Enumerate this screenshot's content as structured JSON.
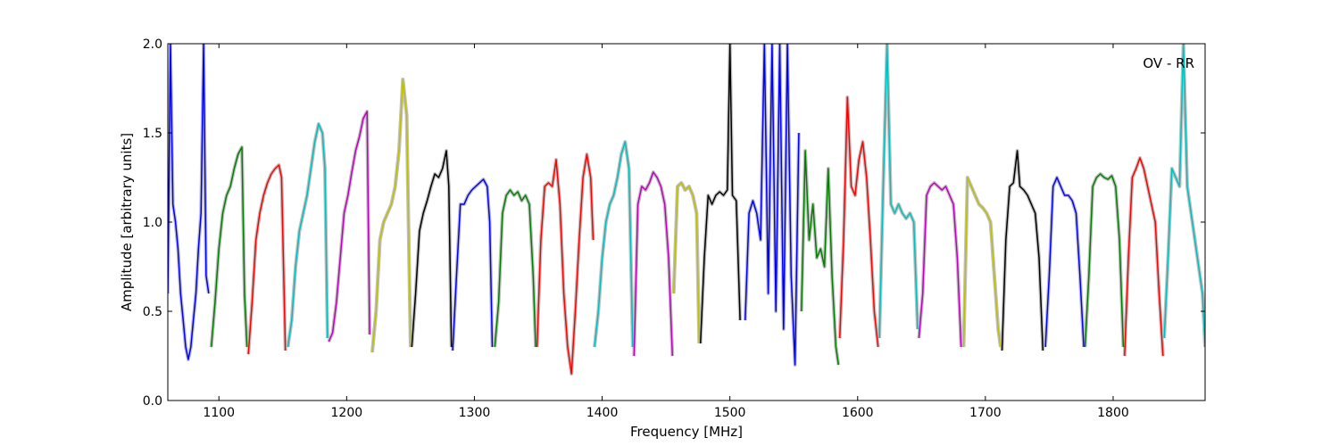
{
  "chart_data": {
    "type": "line",
    "title": "",
    "annotation": "OV - RR",
    "xlabel": "Frequency [MHz]",
    "ylabel": "Amplitude [arbitrary units]",
    "xlim": [
      1060,
      1872
    ],
    "ylim": [
      0.0,
      2.0
    ],
    "xticks": [
      1100,
      1200,
      1300,
      1400,
      1500,
      1600,
      1700,
      1800
    ],
    "xtick_labels": [
      "1100",
      "1200",
      "1300",
      "1400",
      "1500",
      "1600",
      "1700",
      "1800"
    ],
    "yticks": [
      0.0,
      0.5,
      1.0,
      1.5,
      2.0
    ],
    "ytick_labels": [
      "0.0",
      "0.5",
      "1.0",
      "1.5",
      "2.0"
    ],
    "grid": false,
    "legend": "none",
    "background_series_color": "#c0c0c0",
    "series": [
      {
        "color": "#0000ff",
        "x": [
          1060,
          1062,
          1064,
          1066,
          1068,
          1070,
          1072,
          1074,
          1076,
          1078,
          1080,
          1082,
          1084,
          1086,
          1088,
          1090,
          1092
        ],
        "y": [
          0.6,
          2.0,
          1.1,
          1.0,
          0.85,
          0.6,
          0.45,
          0.3,
          0.23,
          0.3,
          0.45,
          0.6,
          0.85,
          1.05,
          2.0,
          0.7,
          0.6
        ]
      },
      {
        "color": "#008000",
        "x": [
          1094,
          1097,
          1100,
          1103,
          1106,
          1109,
          1112,
          1115,
          1118,
          1120,
          1122
        ],
        "y": [
          0.3,
          0.55,
          0.85,
          1.05,
          1.15,
          1.2,
          1.3,
          1.38,
          1.42,
          0.6,
          0.3
        ]
      },
      {
        "color": "#ff0000",
        "x": [
          1123,
          1126,
          1129,
          1132,
          1135,
          1138,
          1141,
          1144,
          1147,
          1149,
          1152
        ],
        "y": [
          0.26,
          0.55,
          0.9,
          1.05,
          1.15,
          1.22,
          1.27,
          1.3,
          1.32,
          1.25,
          0.28
        ]
      },
      {
        "color": "#00bfbf",
        "x": [
          1154,
          1157,
          1160,
          1163,
          1166,
          1169,
          1172,
          1175,
          1178,
          1181,
          1183,
          1185
        ],
        "y": [
          0.3,
          0.45,
          0.75,
          0.95,
          1.05,
          1.15,
          1.3,
          1.45,
          1.55,
          1.5,
          1.3,
          0.35
        ]
      },
      {
        "color": "#bf00bf",
        "x": [
          1186,
          1189,
          1192,
          1195,
          1198,
          1201,
          1204,
          1207,
          1210,
          1213,
          1216,
          1218
        ],
        "y": [
          0.33,
          0.38,
          0.55,
          0.8,
          1.05,
          1.15,
          1.28,
          1.4,
          1.48,
          1.58,
          1.62,
          0.37
        ]
      },
      {
        "color": "#bfbf00",
        "x": [
          1220,
          1223,
          1226,
          1229,
          1232,
          1235,
          1238,
          1241,
          1244,
          1247,
          1250
        ],
        "y": [
          0.27,
          0.5,
          0.9,
          1.0,
          1.05,
          1.1,
          1.2,
          1.4,
          1.8,
          1.6,
          0.3
        ]
      },
      {
        "color": "#000000",
        "x": [
          1251,
          1254,
          1257,
          1260,
          1263,
          1266,
          1269,
          1272,
          1275,
          1278,
          1280,
          1282
        ],
        "y": [
          0.3,
          0.6,
          0.95,
          1.05,
          1.12,
          1.2,
          1.27,
          1.25,
          1.3,
          1.4,
          1.2,
          0.3
        ]
      },
      {
        "color": "#0000ff",
        "x": [
          1283,
          1286,
          1289,
          1292,
          1295,
          1298,
          1301,
          1304,
          1307,
          1310,
          1312,
          1314
        ],
        "y": [
          0.28,
          0.7,
          1.1,
          1.1,
          1.15,
          1.18,
          1.2,
          1.22,
          1.24,
          1.2,
          1.0,
          0.3
        ]
      },
      {
        "color": "#008000",
        "x": [
          1316,
          1319,
          1322,
          1325,
          1328,
          1331,
          1334,
          1337,
          1340,
          1343,
          1346,
          1348
        ],
        "y": [
          0.3,
          0.55,
          1.05,
          1.15,
          1.18,
          1.15,
          1.17,
          1.12,
          1.15,
          1.1,
          0.7,
          0.3
        ]
      },
      {
        "color": "#ff0000",
        "x": [
          1349,
          1352,
          1355,
          1358,
          1361,
          1364,
          1367,
          1370,
          1373,
          1376,
          1379,
          1382,
          1385,
          1388,
          1391,
          1393
        ],
        "y": [
          0.3,
          0.9,
          1.2,
          1.22,
          1.2,
          1.35,
          1.1,
          0.6,
          0.3,
          0.15,
          0.5,
          0.9,
          1.25,
          1.38,
          1.25,
          0.9
        ]
      },
      {
        "color": "#00bfbf",
        "x": [
          1394,
          1397,
          1400,
          1403,
          1406,
          1409,
          1412,
          1415,
          1418,
          1421,
          1424
        ],
        "y": [
          0.3,
          0.5,
          0.8,
          1.0,
          1.1,
          1.15,
          1.25,
          1.38,
          1.45,
          1.3,
          0.3
        ]
      },
      {
        "color": "#bf00bf",
        "x": [
          1425,
          1428,
          1431,
          1434,
          1437,
          1440,
          1443,
          1446,
          1449,
          1452,
          1455
        ],
        "y": [
          0.25,
          1.1,
          1.2,
          1.18,
          1.22,
          1.28,
          1.25,
          1.2,
          1.1,
          0.8,
          0.25
        ]
      },
      {
        "color": "#bfbf00",
        "x": [
          1456,
          1459,
          1462,
          1465,
          1468,
          1471,
          1474,
          1476
        ],
        "y": [
          0.6,
          1.2,
          1.22,
          1.18,
          1.2,
          1.15,
          1.05,
          0.32
        ]
      },
      {
        "color": "#000000",
        "x": [
          1477,
          1480,
          1483,
          1486,
          1489,
          1492,
          1495,
          1498,
          1500,
          1502,
          1505,
          1508
        ],
        "y": [
          0.32,
          0.8,
          1.15,
          1.1,
          1.15,
          1.17,
          1.15,
          1.18,
          2.0,
          1.15,
          1.12,
          0.45
        ]
      },
      {
        "color": "#0000ff",
        "x": [
          1512,
          1515,
          1518,
          1521,
          1524,
          1527,
          1530,
          1533,
          1536,
          1539,
          1542,
          1545,
          1548,
          1551,
          1554
        ],
        "y": [
          0.45,
          1.05,
          1.12,
          1.05,
          0.9,
          2.0,
          0.6,
          2.0,
          0.5,
          2.0,
          0.4,
          2.0,
          0.7,
          0.2,
          1.5
        ]
      },
      {
        "color": "#008000",
        "x": [
          1556,
          1559,
          1562,
          1565,
          1568,
          1571,
          1574,
          1577,
          1580,
          1583,
          1585
        ],
        "y": [
          0.5,
          1.4,
          0.9,
          1.1,
          0.8,
          0.85,
          0.75,
          1.3,
          0.7,
          0.3,
          0.2
        ]
      },
      {
        "color": "#ff0000",
        "x": [
          1586,
          1589,
          1592,
          1595,
          1598,
          1601,
          1604,
          1607,
          1610,
          1613,
          1616
        ],
        "y": [
          0.35,
          0.9,
          1.7,
          1.2,
          1.15,
          1.35,
          1.45,
          1.25,
          0.9,
          0.5,
          0.3
        ]
      },
      {
        "color": "#00bfbf",
        "x": [
          1617,
          1620,
          1623,
          1626,
          1629,
          1632,
          1635,
          1638,
          1641,
          1644,
          1647
        ],
        "y": [
          0.35,
          1.2,
          2.0,
          1.1,
          1.05,
          1.1,
          1.05,
          1.02,
          1.05,
          1.0,
          0.4
        ]
      },
      {
        "color": "#bf00bf",
        "x": [
          1648,
          1651,
          1654,
          1657,
          1660,
          1663,
          1666,
          1669,
          1672,
          1675,
          1678,
          1681
        ],
        "y": [
          0.35,
          0.6,
          1.15,
          1.2,
          1.22,
          1.2,
          1.18,
          1.2,
          1.15,
          1.1,
          0.8,
          0.3
        ]
      },
      {
        "color": "#bfbf00",
        "x": [
          1683,
          1686,
          1689,
          1692,
          1695,
          1698,
          1701,
          1704,
          1707,
          1710,
          1712
        ],
        "y": [
          0.3,
          1.25,
          1.2,
          1.15,
          1.1,
          1.08,
          1.05,
          1.0,
          0.7,
          0.4,
          0.3
        ]
      },
      {
        "color": "#000000",
        "x": [
          1713,
          1716,
          1719,
          1722,
          1725,
          1727,
          1730,
          1733,
          1736,
          1739,
          1742,
          1745
        ],
        "y": [
          0.28,
          0.9,
          1.2,
          1.22,
          1.4,
          1.2,
          1.18,
          1.15,
          1.1,
          1.05,
          0.8,
          0.28
        ]
      },
      {
        "color": "#0000ff",
        "x": [
          1747,
          1750,
          1753,
          1756,
          1759,
          1762,
          1765,
          1768,
          1771,
          1774,
          1777
        ],
        "y": [
          0.3,
          0.7,
          1.2,
          1.25,
          1.2,
          1.15,
          1.15,
          1.12,
          1.05,
          0.7,
          0.3
        ]
      },
      {
        "color": "#008000",
        "x": [
          1778,
          1781,
          1784,
          1787,
          1790,
          1793,
          1796,
          1799,
          1802,
          1805,
          1808
        ],
        "y": [
          0.3,
          0.7,
          1.2,
          1.25,
          1.27,
          1.25,
          1.24,
          1.26,
          1.2,
          0.9,
          0.3
        ]
      },
      {
        "color": "#ff0000",
        "x": [
          1809,
          1812,
          1815,
          1818,
          1821,
          1824,
          1827,
          1830,
          1833,
          1836,
          1839
        ],
        "y": [
          0.25,
          0.8,
          1.25,
          1.3,
          1.36,
          1.3,
          1.2,
          1.1,
          1.0,
          0.6,
          0.25
        ]
      },
      {
        "color": "#00bfbf",
        "x": [
          1840,
          1843,
          1846,
          1849,
          1852,
          1855,
          1858,
          1861,
          1864,
          1867,
          1870,
          1872
        ],
        "y": [
          0.35,
          0.8,
          1.3,
          1.25,
          1.2,
          2.0,
          1.2,
          1.05,
          0.9,
          0.75,
          0.6,
          0.3
        ]
      }
    ]
  }
}
